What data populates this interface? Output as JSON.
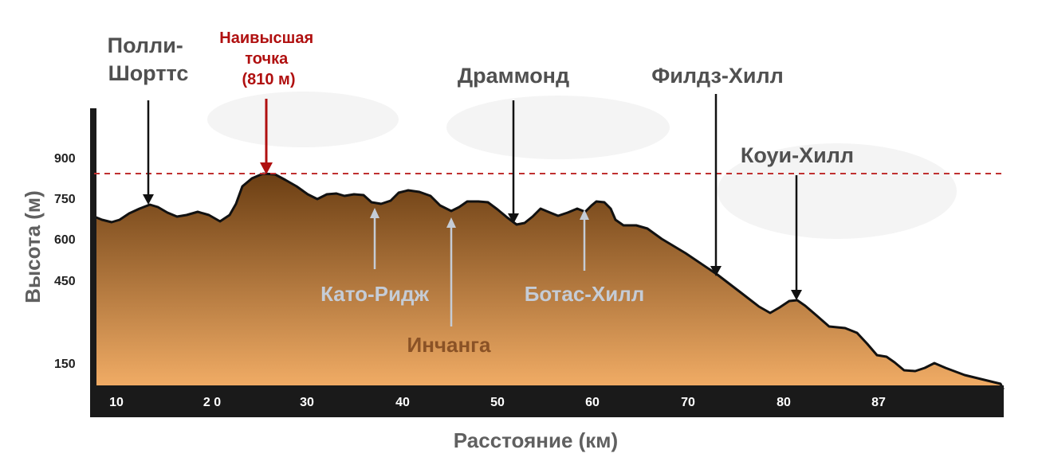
{
  "axis": {
    "y_title": "Высота (м)",
    "x_title": "Расстояние (км)",
    "y_ticks": [
      "900",
      "750",
      "600",
      "450",
      "150"
    ],
    "x_ticks": [
      "10",
      "2 0",
      "30",
      "40",
      "50",
      "60",
      "70",
      "80",
      "87"
    ]
  },
  "peaks": {
    "polli": "Полли-\nШорттс",
    "highest": "Наивысшая\nточка\n(810 м)",
    "drummond": "Драммонд",
    "fields": "Филдз-Хилл",
    "cowie": "Коуи-Хилл",
    "kato": "Като-Ридж",
    "botha": "Ботас-Хилл",
    "inchanga": "Инчанга"
  },
  "colors": {
    "profile_top": "#6b3e13",
    "profile_bottom": "#f2ad66",
    "axis_band": "#1a1a1a",
    "dashed_line": "#c03030",
    "highlight_red": "#b01010",
    "light_label": "#c5ccd6",
    "brown_label": "#8a5226"
  }
}
